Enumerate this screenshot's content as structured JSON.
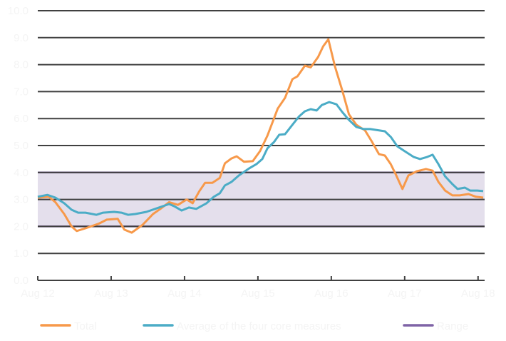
{
  "chart_data": {
    "type": "line",
    "title": "",
    "xlabel": "",
    "ylabel": "",
    "x_unit": "years since Aug 2012",
    "xlim": [
      0,
      6.07
    ],
    "ylim": [
      0,
      10
    ],
    "yticks": [
      "0.0",
      "1.0",
      "2.0",
      "3.0",
      "4.0",
      "5.0",
      "6.0",
      "7.0",
      "8.0",
      "9.0",
      "10.0"
    ],
    "xticks": [
      "Aug 12",
      "Aug 13",
      "Aug 14",
      "Aug 15",
      "Aug 16",
      "Aug 17",
      "Aug 18"
    ],
    "grid": true,
    "band": {
      "name": "Range",
      "low": 2.0,
      "high": 4.0,
      "color": "#7f63a6",
      "fill": "#e4dfec"
    },
    "legend_position": "bottom",
    "series": [
      {
        "name": "Total",
        "color": "#f7994a",
        "x": [
          0,
          0.15,
          0.24,
          0.36,
          0.46,
          0.53,
          0.65,
          0.83,
          0.94,
          1.09,
          1.18,
          1.28,
          1.43,
          1.57,
          1.67,
          1.79,
          1.91,
          2.03,
          2.11,
          2.2,
          2.28,
          2.38,
          2.48,
          2.55,
          2.64,
          2.71,
          2.81,
          2.93,
          3.03,
          3.13,
          3.27,
          3.37,
          3.47,
          3.54,
          3.64,
          3.72,
          3.82,
          3.89,
          3.96,
          4.05,
          4.15,
          4.24,
          4.34,
          4.46,
          4.55,
          4.65,
          4.73,
          4.81,
          4.88,
          4.97,
          5.05,
          5.17,
          5.29,
          5.38,
          5.46,
          5.55,
          5.65,
          5.75,
          5.87,
          5.97,
          6.07
        ],
        "values": [
          3.07,
          3.1,
          2.9,
          2.46,
          2.0,
          1.83,
          1.93,
          2.1,
          2.25,
          2.28,
          1.88,
          1.77,
          2.06,
          2.46,
          2.65,
          2.9,
          2.8,
          3.0,
          2.86,
          3.3,
          3.62,
          3.62,
          3.8,
          4.34,
          4.52,
          4.6,
          4.4,
          4.42,
          4.8,
          5.37,
          6.37,
          6.77,
          7.46,
          7.57,
          7.96,
          7.9,
          8.28,
          8.68,
          8.94,
          7.93,
          7.04,
          6.16,
          5.77,
          5.56,
          5.16,
          4.68,
          4.63,
          4.31,
          3.92,
          3.39,
          3.89,
          4.05,
          4.13,
          4.07,
          3.65,
          3.33,
          3.15,
          3.15,
          3.2,
          3.1,
          3.07
        ]
      },
      {
        "name": "Average of the four core measures",
        "color": "#4bacc6",
        "x": [
          0,
          0.13,
          0.24,
          0.36,
          0.46,
          0.55,
          0.65,
          0.8,
          0.89,
          1.04,
          1.14,
          1.23,
          1.33,
          1.48,
          1.62,
          1.79,
          1.86,
          1.96,
          2.06,
          2.16,
          2.3,
          2.4,
          2.48,
          2.55,
          2.64,
          2.74,
          2.88,
          2.98,
          3.06,
          3.13,
          3.22,
          3.29,
          3.37,
          3.47,
          3.56,
          3.64,
          3.72,
          3.8,
          3.87,
          3.97,
          4.07,
          4.15,
          4.24,
          4.34,
          4.44,
          4.53,
          4.73,
          4.81,
          4.9,
          5.0,
          5.12,
          5.21,
          5.31,
          5.38,
          5.46,
          5.55,
          5.65,
          5.72,
          5.82,
          5.89,
          5.99,
          6.07
        ],
        "values": [
          3.1,
          3.17,
          3.07,
          2.86,
          2.62,
          2.51,
          2.51,
          2.43,
          2.51,
          2.54,
          2.51,
          2.43,
          2.46,
          2.54,
          2.67,
          2.83,
          2.75,
          2.59,
          2.7,
          2.65,
          2.86,
          3.1,
          3.23,
          3.52,
          3.65,
          3.89,
          4.15,
          4.31,
          4.5,
          4.9,
          5.13,
          5.4,
          5.42,
          5.77,
          6.08,
          6.27,
          6.35,
          6.3,
          6.5,
          6.61,
          6.53,
          6.24,
          5.95,
          5.69,
          5.61,
          5.61,
          5.53,
          5.32,
          4.97,
          4.79,
          4.58,
          4.5,
          4.58,
          4.66,
          4.31,
          3.86,
          3.57,
          3.39,
          3.44,
          3.33,
          3.33,
          3.31
        ]
      }
    ]
  }
}
